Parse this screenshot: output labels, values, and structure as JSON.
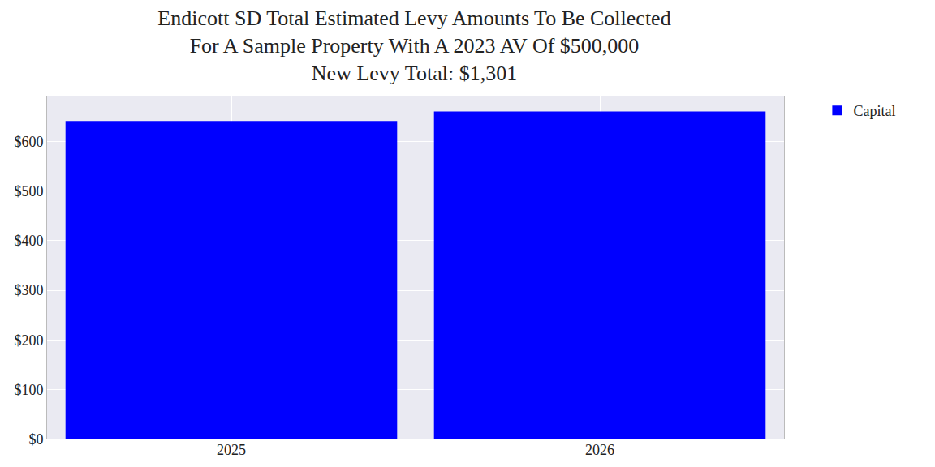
{
  "chart_data": {
    "type": "bar",
    "title": "Endicott SD Total Estimated Levy Amounts To Be Collected\nFor A Sample Property With A 2023 AV Of $500,000\nNew Levy Total: $1,301",
    "categories": [
      "2025",
      "2026"
    ],
    "series": [
      {
        "name": "Capital",
        "color": "#0000ff",
        "values": [
          641,
          660
        ]
      }
    ],
    "ylim": [
      0,
      692
    ],
    "yticks": [
      {
        "value": 0,
        "label": "$0"
      },
      {
        "value": 100,
        "label": "$100"
      },
      {
        "value": 200,
        "label": "$200"
      },
      {
        "value": 300,
        "label": "$300"
      },
      {
        "value": 400,
        "label": "$400"
      },
      {
        "value": 500,
        "label": "$500"
      },
      {
        "value": 600,
        "label": "$600"
      }
    ],
    "grid": true,
    "legend": "upper right"
  }
}
